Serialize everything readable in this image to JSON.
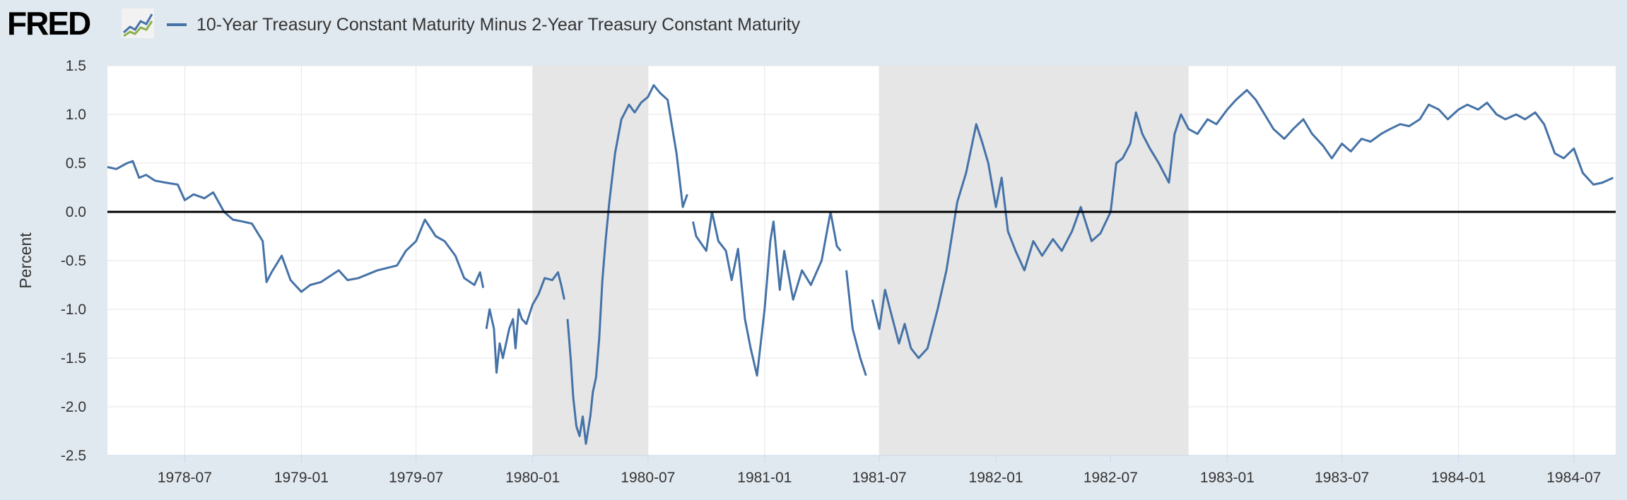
{
  "header": {
    "logo_text": "FRED",
    "logo_mark_icon": "fred-line-chart-icon",
    "legend_label": "10-Year Treasury Constant Maturity Minus 2-Year Treasury Constant Maturity"
  },
  "colors": {
    "series": "#4572a7",
    "recession_band": "#e6e6e6",
    "plot_background": "#ffffff",
    "page_background": "#e1e9f0",
    "zero_line": "#000000",
    "grid": "#e6e6e6"
  },
  "chart_data": {
    "type": "line",
    "title": "",
    "ylabel": "Percent",
    "xlabel": "",
    "x_range": [
      "1978-03-01",
      "1984-09-05"
    ],
    "ylim": [
      -2.5,
      1.5
    ],
    "y_ticks": [
      1.5,
      1.0,
      0.5,
      0.0,
      -0.5,
      -1.0,
      -1.5,
      -2.0,
      -2.5
    ],
    "x_ticks": [
      "1978-07",
      "1979-01",
      "1979-07",
      "1980-01",
      "1980-07",
      "1981-01",
      "1981-07",
      "1982-01",
      "1982-07",
      "1983-01",
      "1983-07",
      "1984-01",
      "1984-07"
    ],
    "grid": true,
    "legend_placement": "top-left",
    "reference_line": 0,
    "recessions": [
      {
        "start": "1980-01-01",
        "end": "1980-07-01"
      },
      {
        "start": "1981-07-01",
        "end": "1982-11-01"
      }
    ],
    "series": [
      {
        "name": "10-Year Treasury Constant Maturity Minus 2-Year Treasury Constant Maturity",
        "segments": [
          [
            [
              "1978-03-01",
              0.46
            ],
            [
              "1978-03-15",
              0.44
            ],
            [
              "1978-04-01",
              0.5
            ],
            [
              "1978-04-10",
              0.52
            ],
            [
              "1978-04-20",
              0.35
            ],
            [
              "1978-05-01",
              0.38
            ],
            [
              "1978-05-15",
              0.32
            ],
            [
              "1978-06-01",
              0.3
            ],
            [
              "1978-06-20",
              0.28
            ],
            [
              "1978-07-01",
              0.12
            ],
            [
              "1978-07-15",
              0.18
            ],
            [
              "1978-08-01",
              0.14
            ],
            [
              "1978-08-15",
              0.2
            ],
            [
              "1978-09-01",
              0.0
            ],
            [
              "1978-09-15",
              -0.08
            ],
            [
              "1978-10-01",
              -0.1
            ],
            [
              "1978-10-15",
              -0.12
            ],
            [
              "1978-11-01",
              -0.3
            ],
            [
              "1978-11-07",
              -0.72
            ],
            [
              "1978-11-15",
              -0.62
            ],
            [
              "1978-12-01",
              -0.45
            ],
            [
              "1978-12-15",
              -0.7
            ],
            [
              "1979-01-01",
              -0.82
            ],
            [
              "1979-01-15",
              -0.75
            ],
            [
              "1979-02-01",
              -0.72
            ],
            [
              "1979-03-01",
              -0.6
            ],
            [
              "1979-03-15",
              -0.7
            ],
            [
              "1979-04-01",
              -0.68
            ],
            [
              "1979-05-01",
              -0.6
            ],
            [
              "1979-06-01",
              -0.55
            ],
            [
              "1979-06-15",
              -0.4
            ],
            [
              "1979-07-01",
              -0.3
            ],
            [
              "1979-07-15",
              -0.08
            ],
            [
              "1979-08-01",
              -0.25
            ],
            [
              "1979-08-15",
              -0.3
            ],
            [
              "1979-09-01",
              -0.45
            ],
            [
              "1979-09-15",
              -0.68
            ],
            [
              "1979-10-01",
              -0.75
            ],
            [
              "1979-10-10",
              -0.62
            ],
            [
              "1979-10-15",
              -0.78
            ]
          ],
          [
            [
              "1979-10-20",
              -1.2
            ],
            [
              "1979-10-25",
              -1.0
            ],
            [
              "1979-11-01",
              -1.2
            ],
            [
              "1979-11-05",
              -1.65
            ],
            [
              "1979-11-10",
              -1.35
            ],
            [
              "1979-11-15",
              -1.5
            ],
            [
              "1979-11-25",
              -1.2
            ],
            [
              "1979-12-01",
              -1.1
            ],
            [
              "1979-12-05",
              -1.4
            ],
            [
              "1979-12-10",
              -1.0
            ],
            [
              "1979-12-15",
              -1.1
            ],
            [
              "1979-12-22",
              -1.15
            ],
            [
              "1980-01-01",
              -0.95
            ],
            [
              "1980-01-10",
              -0.85
            ],
            [
              "1980-01-20",
              -0.68
            ],
            [
              "1980-02-01",
              -0.7
            ],
            [
              "1980-02-10",
              -0.62
            ],
            [
              "1980-02-15",
              -0.75
            ],
            [
              "1980-02-20",
              -0.9
            ]
          ],
          [
            [
              "1980-02-25",
              -1.1
            ],
            [
              "1980-03-01",
              -1.5
            ],
            [
              "1980-03-05",
              -1.9
            ],
            [
              "1980-03-10",
              -2.2
            ],
            [
              "1980-03-15",
              -2.3
            ],
            [
              "1980-03-20",
              -2.1
            ],
            [
              "1980-03-25",
              -2.38
            ],
            [
              "1980-04-01",
              -2.1
            ],
            [
              "1980-04-05",
              -1.85
            ],
            [
              "1980-04-10",
              -1.7
            ],
            [
              "1980-04-15",
              -1.3
            ],
            [
              "1980-04-20",
              -0.7
            ],
            [
              "1980-04-25",
              -0.3
            ],
            [
              "1980-05-01",
              0.1
            ],
            [
              "1980-05-10",
              0.6
            ],
            [
              "1980-05-20",
              0.95
            ],
            [
              "1980-06-01",
              1.1
            ],
            [
              "1980-06-10",
              1.02
            ],
            [
              "1980-06-20",
              1.12
            ],
            [
              "1980-07-01",
              1.18
            ],
            [
              "1980-07-10",
              1.3
            ],
            [
              "1980-07-20",
              1.22
            ],
            [
              "1980-08-01",
              1.15
            ],
            [
              "1980-08-15",
              0.6
            ],
            [
              "1980-08-25",
              0.05
            ],
            [
              "1980-09-01",
              0.18
            ]
          ],
          [
            [
              "1980-09-10",
              -0.1
            ],
            [
              "1980-09-15",
              -0.25
            ],
            [
              "1980-10-01",
              -0.4
            ],
            [
              "1980-10-10",
              0.0
            ],
            [
              "1980-10-20",
              -0.3
            ],
            [
              "1980-11-01",
              -0.4
            ],
            [
              "1980-11-10",
              -0.7
            ],
            [
              "1980-11-20",
              -0.38
            ],
            [
              "1980-12-01",
              -1.1
            ],
            [
              "1980-12-10",
              -1.4
            ],
            [
              "1980-12-20",
              -1.68
            ],
            [
              "1981-01-01",
              -1.0
            ],
            [
              "1981-01-10",
              -0.3
            ],
            [
              "1981-01-15",
              -0.1
            ],
            [
              "1981-01-25",
              -0.8
            ],
            [
              "1981-02-01",
              -0.4
            ],
            [
              "1981-02-15",
              -0.9
            ],
            [
              "1981-03-01",
              -0.6
            ],
            [
              "1981-03-15",
              -0.75
            ],
            [
              "1981-04-01",
              -0.5
            ],
            [
              "1981-04-15",
              0.0
            ],
            [
              "1981-04-25",
              -0.35
            ],
            [
              "1981-05-01",
              -0.4
            ]
          ],
          [
            [
              "1981-05-10",
              -0.6
            ],
            [
              "1981-05-20",
              -1.2
            ],
            [
              "1981-06-01",
              -1.5
            ],
            [
              "1981-06-10",
              -1.68
            ]
          ],
          [
            [
              "1981-06-20",
              -0.9
            ],
            [
              "1981-07-01",
              -1.2
            ],
            [
              "1981-07-10",
              -0.8
            ],
            [
              "1981-07-20",
              -1.05
            ],
            [
              "1981-08-01",
              -1.35
            ],
            [
              "1981-08-10",
              -1.15
            ],
            [
              "1981-08-20",
              -1.4
            ],
            [
              "1981-09-01",
              -1.5
            ],
            [
              "1981-09-15",
              -1.4
            ],
            [
              "1981-10-01",
              -1.0
            ],
            [
              "1981-10-15",
              -0.6
            ],
            [
              "1981-11-01",
              0.1
            ],
            [
              "1981-11-15",
              0.4
            ],
            [
              "1981-12-01",
              0.9
            ],
            [
              "1981-12-10",
              0.72
            ],
            [
              "1981-12-20",
              0.5
            ],
            [
              "1982-01-01",
              0.05
            ],
            [
              "1982-01-10",
              0.35
            ],
            [
              "1982-01-20",
              -0.2
            ],
            [
              "1982-02-01",
              -0.4
            ],
            [
              "1982-02-15",
              -0.6
            ],
            [
              "1982-03-01",
              -0.3
            ],
            [
              "1982-03-15",
              -0.45
            ],
            [
              "1982-04-01",
              -0.28
            ],
            [
              "1982-04-15",
              -0.4
            ],
            [
              "1982-05-01",
              -0.2
            ],
            [
              "1982-05-15",
              0.05
            ],
            [
              "1982-06-01",
              -0.3
            ],
            [
              "1982-06-15",
              -0.22
            ],
            [
              "1982-07-01",
              0.0
            ],
            [
              "1982-07-10",
              0.5
            ],
            [
              "1982-07-20",
              0.55
            ],
            [
              "1982-08-01",
              0.7
            ],
            [
              "1982-08-10",
              1.02
            ],
            [
              "1982-08-20",
              0.8
            ],
            [
              "1982-09-01",
              0.65
            ],
            [
              "1982-09-15",
              0.5
            ],
            [
              "1982-10-01",
              0.3
            ],
            [
              "1982-10-10",
              0.8
            ],
            [
              "1982-10-20",
              1.0
            ],
            [
              "1982-11-01",
              0.85
            ],
            [
              "1982-11-15",
              0.8
            ],
            [
              "1982-12-01",
              0.95
            ],
            [
              "1982-12-15",
              0.9
            ],
            [
              "1983-01-01",
              1.05
            ],
            [
              "1983-01-15",
              1.15
            ],
            [
              "1983-02-01",
              1.25
            ],
            [
              "1983-02-15",
              1.15
            ],
            [
              "1983-03-01",
              1.0
            ],
            [
              "1983-03-15",
              0.85
            ],
            [
              "1983-04-01",
              0.75
            ],
            [
              "1983-04-15",
              0.85
            ],
            [
              "1983-05-01",
              0.95
            ],
            [
              "1983-05-15",
              0.8
            ],
            [
              "1983-06-01",
              0.68
            ],
            [
              "1983-06-15",
              0.55
            ],
            [
              "1983-07-01",
              0.7
            ],
            [
              "1983-07-15",
              0.62
            ],
            [
              "1983-08-01",
              0.75
            ],
            [
              "1983-08-15",
              0.72
            ],
            [
              "1983-09-01",
              0.8
            ],
            [
              "1983-09-15",
              0.85
            ],
            [
              "1983-10-01",
              0.9
            ],
            [
              "1983-10-15",
              0.88
            ],
            [
              "1983-11-01",
              0.95
            ],
            [
              "1983-11-15",
              1.1
            ],
            [
              "1983-12-01",
              1.05
            ],
            [
              "1983-12-15",
              0.95
            ],
            [
              "1984-01-01",
              1.05
            ],
            [
              "1984-01-15",
              1.1
            ],
            [
              "1984-02-01",
              1.05
            ],
            [
              "1984-02-15",
              1.12
            ],
            [
              "1984-03-01",
              1.0
            ],
            [
              "1984-03-15",
              0.95
            ],
            [
              "1984-04-01",
              1.0
            ],
            [
              "1984-04-15",
              0.95
            ],
            [
              "1984-05-01",
              1.02
            ],
            [
              "1984-05-15",
              0.9
            ],
            [
              "1984-06-01",
              0.6
            ],
            [
              "1984-06-15",
              0.55
            ],
            [
              "1984-07-01",
              0.65
            ],
            [
              "1984-07-15",
              0.4
            ],
            [
              "1984-08-01",
              0.28
            ],
            [
              "1984-08-15",
              0.3
            ],
            [
              "1984-09-01",
              0.35
            ]
          ]
        ]
      }
    ]
  }
}
